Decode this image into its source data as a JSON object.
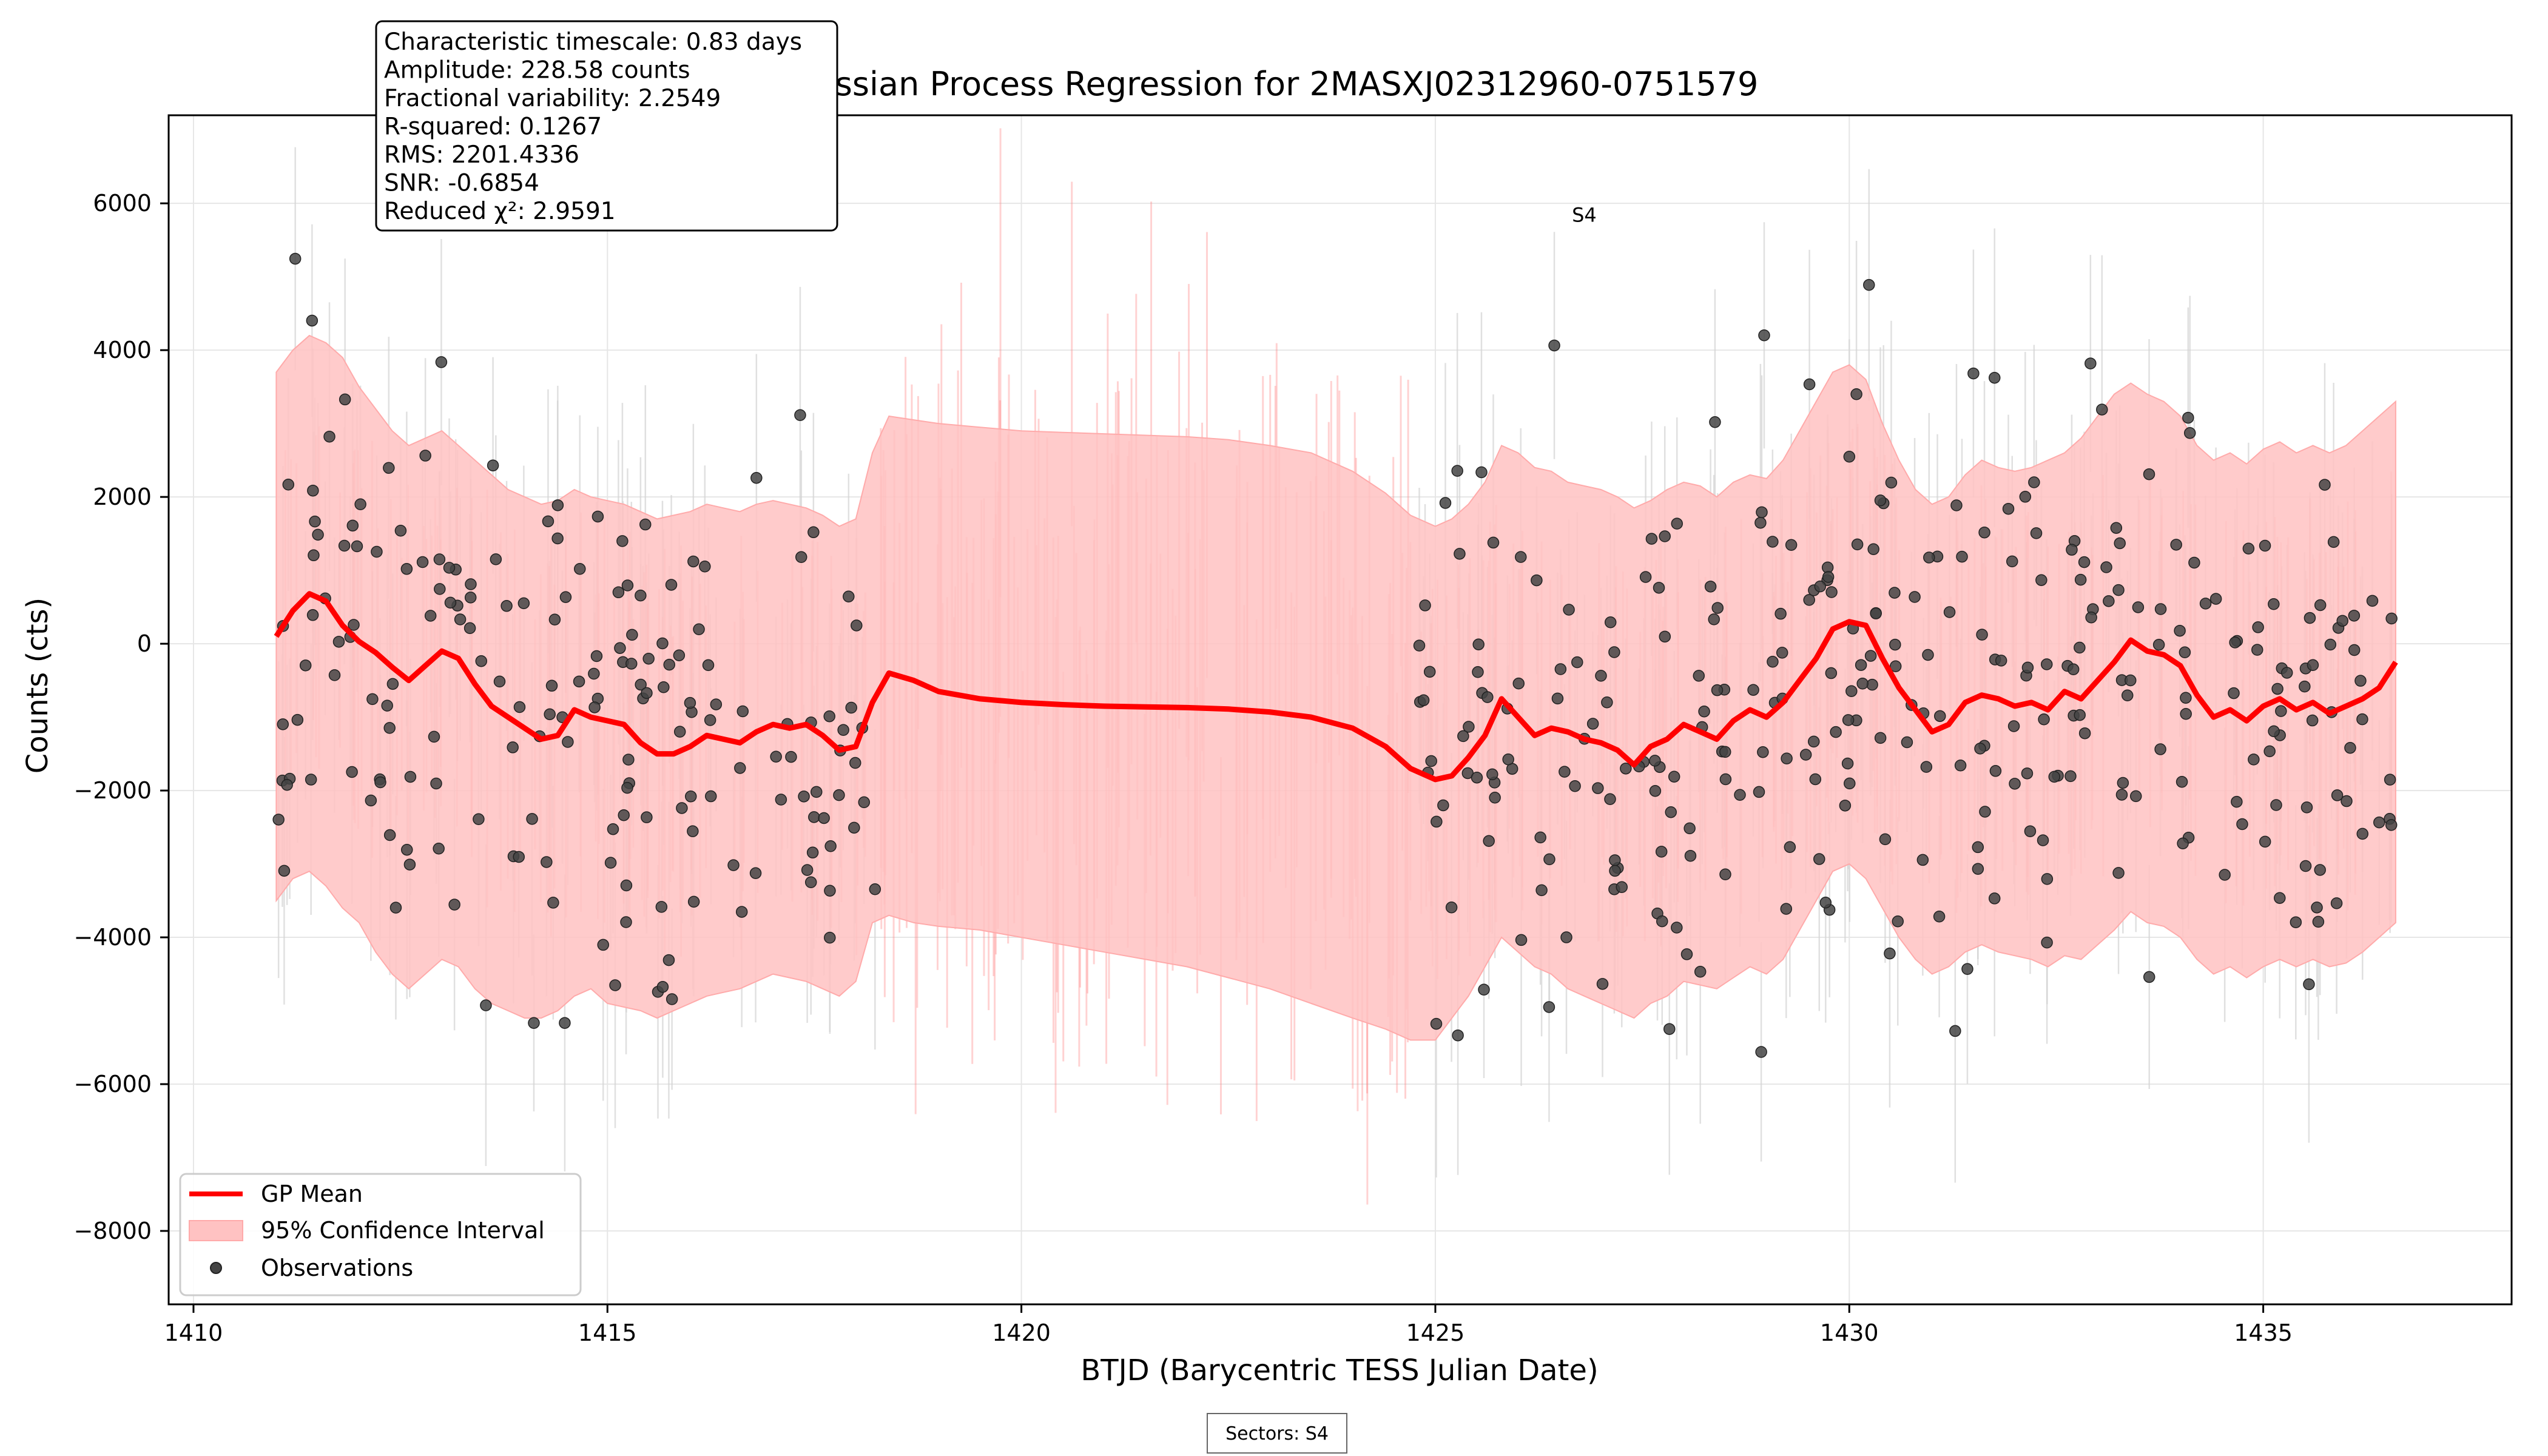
{
  "chart_data": {
    "type": "line",
    "title": "Gaussian Process Regression for 2MASXJ02312960-0751579",
    "xlabel": "BTJD (Barycentric TESS Julian Date)",
    "ylabel": "Counts (cts)",
    "xlim": [
      1409.7,
      1438.0
    ],
    "ylim": [
      -9000,
      7200
    ],
    "xticks": [
      1410,
      1415,
      1420,
      1425,
      1430,
      1435
    ],
    "yticks": [
      -8000,
      -6000,
      -4000,
      -2000,
      0,
      2000,
      4000,
      6000
    ],
    "xtick_labels": [
      "1410",
      "1415",
      "1420",
      "1425",
      "1430",
      "1435"
    ],
    "ytick_labels": [
      "−8000",
      "−6000",
      "−4000",
      "−2000",
      "0",
      "2000",
      "4000",
      "6000"
    ],
    "grid": true,
    "legend_position": "lower-left",
    "colors": {
      "gp_mean": "#ff0000",
      "confidence_fill": "#ffc2c2",
      "observations": "#444444",
      "error_bars": "#d3d3d3"
    },
    "legend": [
      {
        "name": "GP Mean",
        "style": "line"
      },
      {
        "name": "95% Confidence Interval",
        "style": "fill"
      },
      {
        "name": "Observations",
        "style": "marker"
      }
    ],
    "gp_mean": {
      "x": [
        1411.0,
        1411.2,
        1411.4,
        1411.6,
        1411.8,
        1412.0,
        1412.2,
        1412.4,
        1412.6,
        1412.8,
        1413.0,
        1413.2,
        1413.4,
        1413.6,
        1413.8,
        1414.0,
        1414.2,
        1414.4,
        1414.6,
        1414.8,
        1415.0,
        1415.2,
        1415.4,
        1415.6,
        1415.8,
        1416.0,
        1416.2,
        1416.4,
        1416.6,
        1416.8,
        1417.0,
        1417.2,
        1417.4,
        1417.6,
        1417.8,
        1418.0,
        1418.2,
        1418.4,
        1418.7,
        1419.0,
        1419.5,
        1420.0,
        1420.5,
        1421.0,
        1421.5,
        1422.0,
        1422.5,
        1423.0,
        1423.5,
        1424.0,
        1424.4,
        1424.7,
        1425.0,
        1425.2,
        1425.4,
        1425.6,
        1425.8,
        1426.0,
        1426.2,
        1426.4,
        1426.6,
        1426.8,
        1427.0,
        1427.2,
        1427.4,
        1427.6,
        1427.8,
        1428.0,
        1428.2,
        1428.4,
        1428.6,
        1428.8,
        1429.0,
        1429.2,
        1429.4,
        1429.6,
        1429.8,
        1430.0,
        1430.2,
        1430.4,
        1430.6,
        1430.8,
        1431.0,
        1431.2,
        1431.4,
        1431.6,
        1431.8,
        1432.0,
        1432.2,
        1432.4,
        1432.6,
        1432.8,
        1433.0,
        1433.2,
        1433.4,
        1433.6,
        1433.8,
        1434.0,
        1434.2,
        1434.4,
        1434.6,
        1434.8,
        1435.0,
        1435.2,
        1435.4,
        1435.6,
        1435.8,
        1436.0,
        1436.2,
        1436.4,
        1436.6
      ],
      "y": [
        100,
        450,
        680,
        580,
        250,
        30,
        -120,
        -320,
        -500,
        -300,
        -100,
        -200,
        -550,
        -850,
        -1000,
        -1150,
        -1300,
        -1250,
        -900,
        -1000,
        -1050,
        -1100,
        -1350,
        -1500,
        -1500,
        -1400,
        -1250,
        -1300,
        -1350,
        -1200,
        -1100,
        -1150,
        -1100,
        -1250,
        -1450,
        -1400,
        -800,
        -400,
        -500,
        -650,
        -750,
        -800,
        -830,
        -850,
        -860,
        -870,
        -890,
        -930,
        -1000,
        -1150,
        -1400,
        -1700,
        -1850,
        -1800,
        -1550,
        -1250,
        -750,
        -1000,
        -1250,
        -1150,
        -1200,
        -1300,
        -1350,
        -1450,
        -1650,
        -1400,
        -1300,
        -1100,
        -1200,
        -1300,
        -1050,
        -900,
        -1000,
        -800,
        -500,
        -200,
        200,
        300,
        250,
        -200,
        -600,
        -900,
        -1200,
        -1100,
        -800,
        -700,
        -750,
        -850,
        -800,
        -900,
        -650,
        -750,
        -500,
        -250,
        50,
        -100,
        -150,
        -300,
        -700,
        -1000,
        -900,
        -1050,
        -850,
        -750,
        -900,
        -800,
        -950,
        -850,
        -750,
        -600,
        -250
      ],
      "lower": [
        -3500,
        -3200,
        -3100,
        -3300,
        -3600,
        -3800,
        -4200,
        -4500,
        -4700,
        -4500,
        -4300,
        -4400,
        -4700,
        -4900,
        -5000,
        -5100,
        -5100,
        -5000,
        -4800,
        -4700,
        -4900,
        -4950,
        -5000,
        -5100,
        -5000,
        -4900,
        -4800,
        -4750,
        -4700,
        -4600,
        -4500,
        -4550,
        -4600,
        -4700,
        -4800,
        -4600,
        -3800,
        -3700,
        -3800,
        -3850,
        -3900,
        -4000,
        -4100,
        -4200,
        -4300,
        -4400,
        -4550,
        -4700,
        -4900,
        -5100,
        -5250,
        -5400,
        -5400,
        -5100,
        -4800,
        -4400,
        -4000,
        -4200,
        -4400,
        -4500,
        -4700,
        -4800,
        -4900,
        -5000,
        -5100,
        -4900,
        -4800,
        -4600,
        -4650,
        -4700,
        -4550,
        -4400,
        -4500,
        -4300,
        -3900,
        -3500,
        -3100,
        -3000,
        -3200,
        -3600,
        -4000,
        -4300,
        -4500,
        -4400,
        -4200,
        -4100,
        -4200,
        -4250,
        -4300,
        -4400,
        -4250,
        -4300,
        -4100,
        -3900,
        -3650,
        -3800,
        -3850,
        -4000,
        -4300,
        -4500,
        -4400,
        -4550,
        -4400,
        -4300,
        -4400,
        -4300,
        -4400,
        -4350,
        -4200,
        -4000,
        -3800
      ],
      "upper": [
        3700,
        4000,
        4200,
        4100,
        3900,
        3500,
        3200,
        2900,
        2700,
        2800,
        2900,
        2700,
        2500,
        2300,
        2100,
        2000,
        1900,
        1950,
        2100,
        2000,
        1950,
        1900,
        1800,
        1700,
        1750,
        1800,
        1900,
        1850,
        1800,
        1900,
        1950,
        1900,
        1850,
        1750,
        1600,
        1700,
        2600,
        3100,
        3050,
        3000,
        2950,
        2900,
        2880,
        2860,
        2840,
        2820,
        2780,
        2700,
        2600,
        2350,
        2050,
        1750,
        1600,
        1700,
        1900,
        2200,
        2700,
        2600,
        2400,
        2350,
        2200,
        2150,
        2100,
        2000,
        1850,
        1950,
        2100,
        2200,
        2150,
        2000,
        2200,
        2300,
        2250,
        2500,
        2900,
        3300,
        3700,
        3800,
        3600,
        3000,
        2500,
        2100,
        1900,
        2000,
        2300,
        2500,
        2400,
        2350,
        2400,
        2500,
        2600,
        2800,
        3100,
        3400,
        3550,
        3400,
        3300,
        3100,
        2700,
        2500,
        2600,
        2450,
        2650,
        2750,
        2600,
        2700,
        2600,
        2700,
        2900,
        3100,
        3300
      ]
    },
    "annotations": [
      {
        "text": "S4",
        "x": 1426.65,
        "y": 5750
      }
    ],
    "stats": [
      "Characteristic timescale: 0.83 days",
      "Amplitude: 228.58 counts",
      "Fractional variability: 2.2549",
      "R-squared: 0.1267",
      "RMS: 2201.4336",
      "SNR: -0.6854",
      "Reduced χ²: 2.9591"
    ],
    "footer": "Sectors: S4",
    "observations": {
      "count": 650,
      "x_range": [
        1411.0,
        1436.6
      ],
      "gap": [
        1418.3,
        1424.7
      ],
      "typical_error": 1700
    }
  }
}
